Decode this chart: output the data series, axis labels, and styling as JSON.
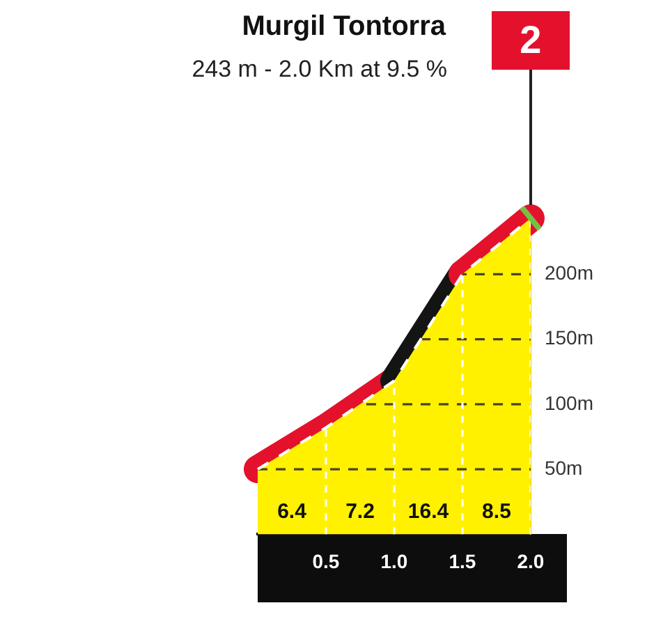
{
  "chart_data": {
    "type": "area",
    "title": "Murgil Tontorra",
    "subtitle": "243 m - 2.0 Km at 9.5 %",
    "x": [
      0,
      0.5,
      1,
      1.5,
      2
    ],
    "values": [
      50,
      82,
      118,
      200,
      243
    ],
    "color": "#fff100",
    "colors": [
      "#e4112d",
      "#e4112d",
      "#141414",
      "#e4112d",
      "#74c044"
    ],
    "xlim": [
      0,
      2
    ],
    "xticks": [
      0.5,
      {
        "value": 1,
        "label": "1.0"
      },
      1.5,
      {
        "value": 2,
        "label": "2.0"
      }
    ],
    "ylim": [
      0,
      250
    ],
    "yticks": [
      {
        "value": 50,
        "label": "50m"
      },
      {
        "value": 100,
        "label": "100m"
      },
      {
        "value": 150,
        "label": "150m"
      },
      {
        "value": 200,
        "label": "200m"
      }
    ],
    "grid": true,
    "annotations": [
      "2",
      "6.4",
      "7.2",
      "16.4",
      "8.5"
    ]
  }
}
